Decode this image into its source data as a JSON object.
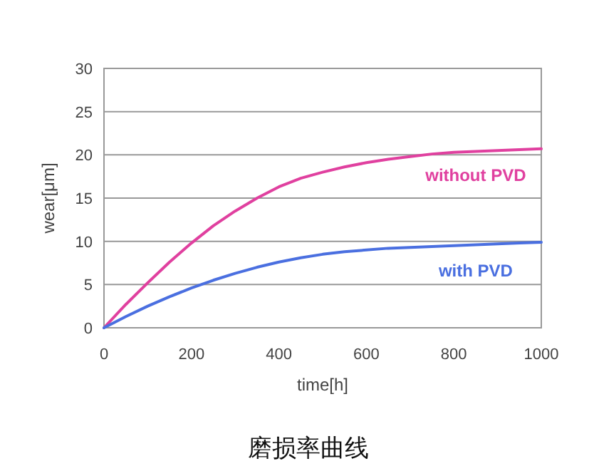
{
  "chart_data": {
    "type": "line",
    "xlabel": "time[h]",
    "ylabel": "wear[μm]",
    "annotations": [
      "磨损率曲线"
    ],
    "x": [
      0,
      50,
      100,
      150,
      200,
      250,
      300,
      350,
      400,
      450,
      500,
      550,
      600,
      650,
      700,
      750,
      800,
      850,
      900,
      950,
      1000
    ],
    "xlim": [
      0,
      1000
    ],
    "xticks": [
      0,
      200,
      400,
      600,
      800,
      1000
    ],
    "ylim": [
      0,
      30
    ],
    "yticks": [
      0,
      5,
      10,
      15,
      20,
      25,
      30
    ],
    "grid": "y",
    "legend": false,
    "marker": "none",
    "line_style": "solid",
    "series": [
      {
        "name": "without PVD",
        "color": "#e0409f",
        "values": [
          0,
          2.7,
          5.2,
          7.6,
          9.8,
          11.8,
          13.5,
          15,
          16.3,
          17.3,
          18,
          18.6,
          19.1,
          19.5,
          19.8,
          20.1,
          20.3,
          20.4,
          20.5,
          20.6,
          20.7
        ]
      },
      {
        "name": "with PVD",
        "color": "#4a6fe0",
        "values": [
          0,
          1.3,
          2.5,
          3.6,
          4.6,
          5.5,
          6.3,
          7,
          7.6,
          8.1,
          8.5,
          8.8,
          9,
          9.2,
          9.3,
          9.4,
          9.5,
          9.6,
          9.7,
          9.8,
          9.9
        ]
      }
    ]
  }
}
